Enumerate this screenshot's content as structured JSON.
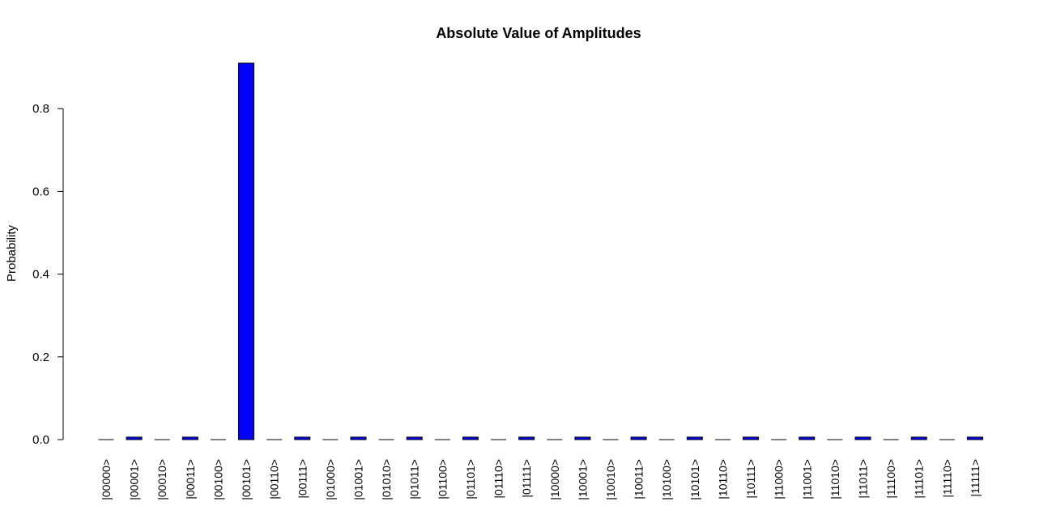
{
  "chart_data": {
    "type": "bar",
    "title": "Absolute Value of Amplitudes",
    "xlabel": "",
    "ylabel": "Probability",
    "ylim": [
      0,
      0.91
    ],
    "yticks": [
      "0.0",
      "0.2",
      "0.4",
      "0.6",
      "0.8"
    ],
    "ytick_values": [
      0,
      0.2,
      0.4,
      0.6,
      0.8
    ],
    "grid": false,
    "categories": [
      "|00000>",
      "|00001>",
      "|00010>",
      "|00011>",
      "|00100>",
      "|00101>",
      "|00110>",
      "|00111>",
      "|01000>",
      "|01001>",
      "|01010>",
      "|01011>",
      "|01100>",
      "|01101>",
      "|01110>",
      "|01111>",
      "|10000>",
      "|10001>",
      "|10010>",
      "|10011>",
      "|10100>",
      "|10101>",
      "|10110>",
      "|10111>",
      "|11000>",
      "|11001>",
      "|11010>",
      "|11011>",
      "|11100>",
      "|11101>",
      "|11110>",
      "|11111>"
    ],
    "values": [
      0,
      0.006,
      0,
      0.006,
      0,
      0.91,
      0,
      0.006,
      0,
      0.006,
      0,
      0.006,
      0,
      0.006,
      0,
      0.006,
      0,
      0.006,
      0,
      0.006,
      0,
      0.006,
      0,
      0.006,
      0,
      0.006,
      0,
      0.006,
      0,
      0.006,
      0,
      0.006
    ],
    "bar_color": "#0000ff",
    "bar_border_color": "#000000"
  }
}
